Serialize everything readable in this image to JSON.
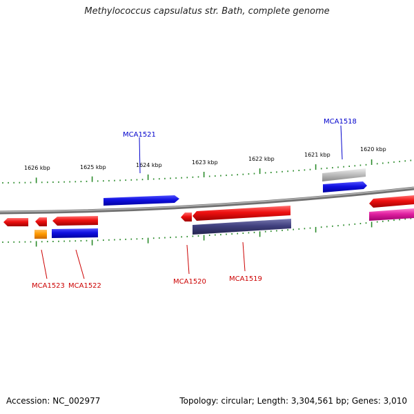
{
  "title": "Methylococcus capsulatus str. Bath, complete genome",
  "footer": {
    "accession": "Accession: NC_002977",
    "summary": "Topology: circular; Length: 3,304,561 bp; Genes: 3,010"
  },
  "colors": {
    "backbone": "#8a8a8a",
    "tick": "#2a8a2a",
    "red_gene": "#e01010",
    "blue_gene": "#1414d8",
    "navy_gene": "#3c3c7c",
    "gray_gene": "#b8b8b8",
    "orange_gene": "#ff9a00",
    "magenta_gene": "#e020a0",
    "label_red": "#cc0000",
    "label_blue": "#0000cc"
  },
  "kbp_labels": [
    "1626 kbp",
    "1625 kbp",
    "1624 kbp",
    "1623 kbp",
    "1622 kbp",
    "1621 kbp",
    "1620 kbp"
  ],
  "gene_labels": [
    "MCA1521",
    "MCA1518",
    "MCA1523",
    "MCA1522",
    "MCA1520",
    "MCA1519"
  ]
}
